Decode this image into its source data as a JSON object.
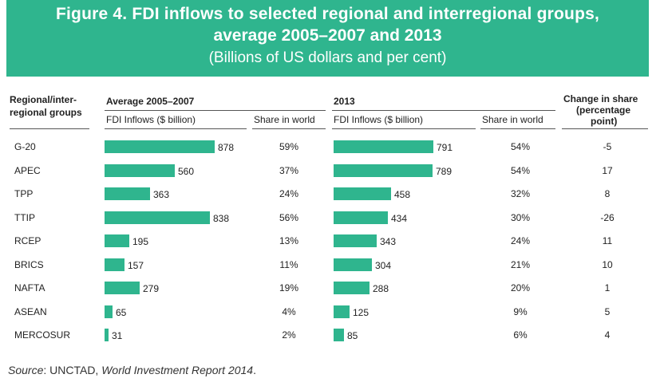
{
  "title": {
    "line1": "Figure 4. FDI inflows to selected regional and interregional groups,",
    "line2": "average 2005–2007 and 2013",
    "line3": "(Billions of US dollars and per cent)"
  },
  "headers": {
    "group_col": "Regional/inter-\nregional groups",
    "group_line1": "Regional/inter-",
    "group_line2": "regional groups",
    "period1": "Average 2005–2007",
    "period2": "2013",
    "fdi_inflows": "FDI Inflows ($ billion)",
    "share_in_world": "Share in world",
    "change_line1": "Change in share",
    "change_line2": "(percentage",
    "change_line3": "point)"
  },
  "source": {
    "prefix": "Source",
    "sep": ": UNCTAD, ",
    "report": "World Investment Report 2014",
    "end": "."
  },
  "colors": {
    "bar": "#2fb58e",
    "banner": "#2fb58e"
  },
  "chart_data": {
    "type": "bar",
    "title": "FDI inflows to selected regional and interregional groups, average 2005–2007 and 2013",
    "categories": [
      "G-20",
      "APEC",
      "TPP",
      "TTIP",
      "RCEP",
      "BRICS",
      "NAFTA",
      "ASEAN",
      "MERCOSUR"
    ],
    "series": [
      {
        "name": "Average 2005–2007 FDI Inflows ($ billion)",
        "values": [
          878,
          560,
          363,
          838,
          195,
          157,
          279,
          65,
          31
        ]
      },
      {
        "name": "2013 FDI Inflows ($ billion)",
        "values": [
          791,
          789,
          458,
          434,
          343,
          304,
          288,
          125,
          85
        ]
      }
    ],
    "share_2005_2007": [
      "59%",
      "37%",
      "24%",
      "56%",
      "13%",
      "11%",
      "19%",
      "4%",
      "2%"
    ],
    "share_2013": [
      "54%",
      "54%",
      "32%",
      "30%",
      "24%",
      "21%",
      "20%",
      "9%",
      "6%"
    ],
    "change_in_share": [
      "-5",
      "17",
      "8",
      "-26",
      "11",
      "10",
      "1",
      "5",
      "4"
    ],
    "ylabel": "FDI Inflows ($ billion)"
  }
}
